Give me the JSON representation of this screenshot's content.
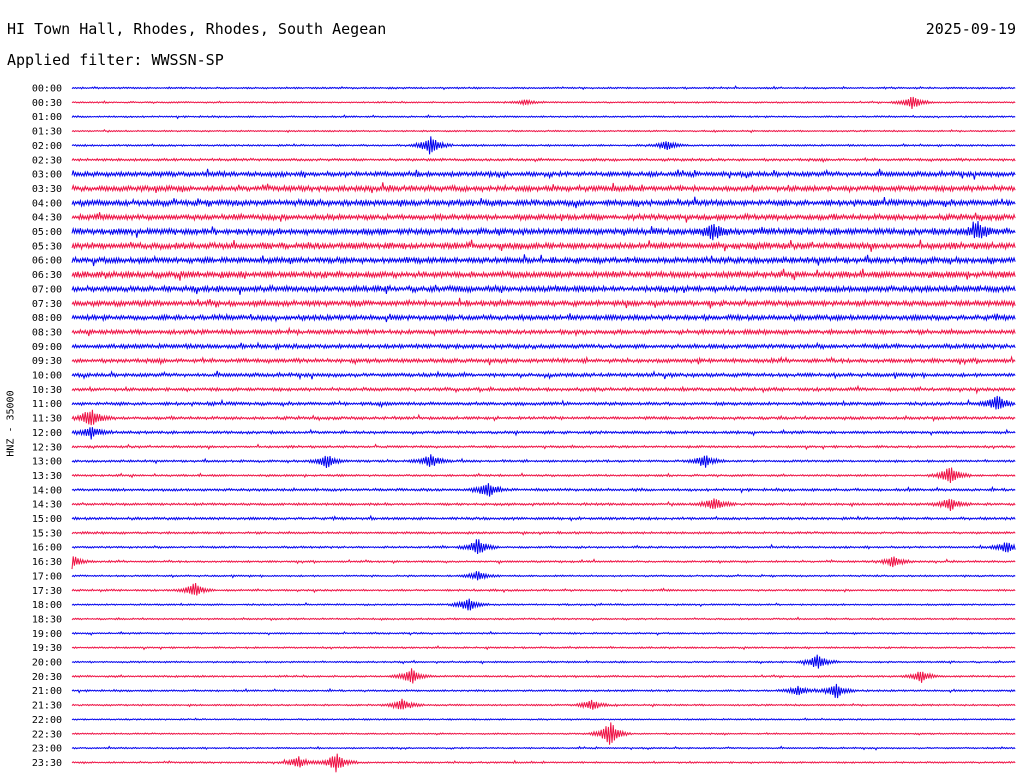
{
  "header": {
    "station": "HI Town Hall, Rhodes, Rhodes, South Aegean",
    "date": "2025-09-19",
    "filter": "Applied filter: WWSSN-SP"
  },
  "axis": {
    "channel_label": "HNZ - 35000"
  },
  "colors": {
    "even_trace": "#0000ee",
    "odd_trace": "#ee1144",
    "text": "#000000"
  },
  "chart_data": {
    "type": "line",
    "title": "HI Town Hall, Rhodes, Rhodes, South Aegean",
    "subtitle": "Applied filter: WWSSN-SP",
    "ylabel": "HNZ - 35000",
    "categories": [
      "00:00",
      "00:30",
      "01:00",
      "01:30",
      "02:00",
      "02:30",
      "03:00",
      "03:30",
      "04:00",
      "04:30",
      "05:00",
      "05:30",
      "06:00",
      "06:30",
      "07:00",
      "07:30",
      "08:00",
      "08:30",
      "09:00",
      "09:30",
      "10:00",
      "10:30",
      "11:00",
      "11:30",
      "12:00",
      "12:30",
      "13:00",
      "13:30",
      "14:00",
      "14:30",
      "15:00",
      "15:30",
      "16:00",
      "16:30",
      "17:00",
      "17:30",
      "18:00",
      "18:30",
      "19:00",
      "19:30",
      "20:00",
      "20:30",
      "21:00",
      "21:30",
      "22:00",
      "22:30",
      "23:00",
      "23:30"
    ],
    "noise_level": [
      0.9,
      0.8,
      0.9,
      0.8,
      1.0,
      1.4,
      2.6,
      3.0,
      3.2,
      3.0,
      3.4,
      3.4,
      3.2,
      3.4,
      3.2,
      3.0,
      2.8,
      2.4,
      2.4,
      2.2,
      2.0,
      1.8,
      1.8,
      1.6,
      1.5,
      1.2,
      1.2,
      1.1,
      1.4,
      1.3,
      1.4,
      1.2,
      1.1,
      1.0,
      0.9,
      1.0,
      0.9,
      0.9,
      0.9,
      0.9,
      0.9,
      1.0,
      1.0,
      0.9,
      0.8,
      0.8,
      0.8,
      0.9
    ],
    "events": [
      {
        "row": 1,
        "at": 0.89,
        "amp": 7
      },
      {
        "row": 1,
        "at": 0.48,
        "amp": 3
      },
      {
        "row": 4,
        "at": 0.38,
        "amp": 10
      },
      {
        "row": 4,
        "at": 0.63,
        "amp": 5
      },
      {
        "row": 10,
        "at": 0.68,
        "amp": 8
      },
      {
        "row": 10,
        "at": 0.96,
        "amp": 9
      },
      {
        "row": 22,
        "at": 0.98,
        "amp": 8
      },
      {
        "row": 23,
        "at": 0.02,
        "amp": 10
      },
      {
        "row": 24,
        "at": 0.02,
        "amp": 6
      },
      {
        "row": 26,
        "at": 0.27,
        "amp": 7
      },
      {
        "row": 26,
        "at": 0.38,
        "amp": 7
      },
      {
        "row": 26,
        "at": 0.67,
        "amp": 7
      },
      {
        "row": 27,
        "at": 0.93,
        "amp": 10
      },
      {
        "row": 28,
        "at": 0.44,
        "amp": 8
      },
      {
        "row": 29,
        "at": 0.68,
        "amp": 7
      },
      {
        "row": 29,
        "at": 0.93,
        "amp": 7
      },
      {
        "row": 32,
        "at": 0.43,
        "amp": 9
      },
      {
        "row": 32,
        "at": 0.99,
        "amp": 6
      },
      {
        "row": 33,
        "at": 0.0,
        "amp": 7
      },
      {
        "row": 33,
        "at": 0.87,
        "amp": 6
      },
      {
        "row": 34,
        "at": 0.43,
        "amp": 5
      },
      {
        "row": 35,
        "at": 0.13,
        "amp": 7
      },
      {
        "row": 36,
        "at": 0.42,
        "amp": 7
      },
      {
        "row": 40,
        "at": 0.79,
        "amp": 8
      },
      {
        "row": 41,
        "at": 0.36,
        "amp": 8
      },
      {
        "row": 41,
        "at": 0.9,
        "amp": 6
      },
      {
        "row": 42,
        "at": 0.81,
        "amp": 8
      },
      {
        "row": 42,
        "at": 0.77,
        "amp": 5
      },
      {
        "row": 43,
        "at": 0.35,
        "amp": 7
      },
      {
        "row": 43,
        "at": 0.55,
        "amp": 6
      },
      {
        "row": 45,
        "at": 0.57,
        "amp": 13
      },
      {
        "row": 47,
        "at": 0.28,
        "amp": 10
      },
      {
        "row": 47,
        "at": 0.24,
        "amp": 6
      }
    ]
  }
}
